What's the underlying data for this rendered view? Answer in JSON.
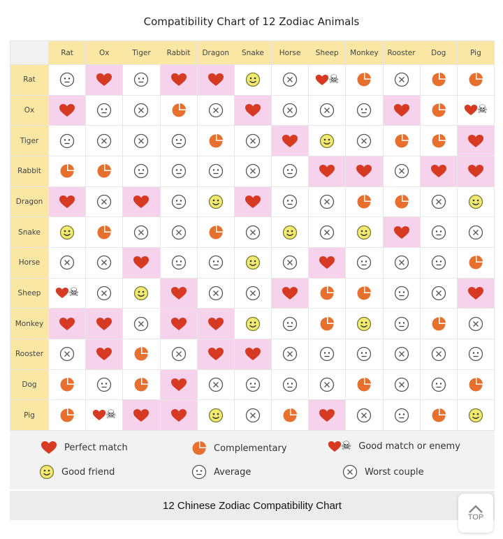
{
  "chart_data": {
    "type": "table",
    "title": "Compatibility Chart of 12 Zodiac Animals",
    "columns": [
      "Rat",
      "Ox",
      "Tiger",
      "Rabbit",
      "Dragon",
      "Snake",
      "Horse",
      "Sheep",
      "Monkey",
      "Rooster",
      "Dog",
      "Pig"
    ],
    "rows": [
      "Rat",
      "Ox",
      "Tiger",
      "Rabbit",
      "Dragon",
      "Snake",
      "Horse",
      "Sheep",
      "Monkey",
      "Rooster",
      "Dog",
      "Pig"
    ],
    "legend": {
      "H": "Perfect match",
      "P": "Complementary",
      "E": "Good match or enemy",
      "G": "Good friend",
      "A": "Average",
      "X": "Worst couple"
    },
    "matrix": [
      [
        "A",
        "H",
        "A",
        "H",
        "H",
        "G",
        "X",
        "E",
        "P",
        "X",
        "P",
        "P"
      ],
      [
        "H",
        "A",
        "X",
        "P",
        "X",
        "H",
        "X",
        "X",
        "A",
        "H",
        "P",
        "E"
      ],
      [
        "A",
        "X",
        "X",
        "A",
        "P",
        "X",
        "H",
        "G",
        "X",
        "P",
        "P",
        "H"
      ],
      [
        "P",
        "P",
        "A",
        "A",
        "A",
        "X",
        "A",
        "H",
        "H",
        "X",
        "H",
        "H"
      ],
      [
        "H",
        "X",
        "H",
        "A",
        "G",
        "H",
        "A",
        "X",
        "P",
        "P",
        "X",
        "G"
      ],
      [
        "G",
        "P",
        "X",
        "X",
        "P",
        "X",
        "G",
        "X",
        "G",
        "H",
        "A",
        "X"
      ],
      [
        "X",
        "X",
        "H",
        "A",
        "A",
        "G",
        "X",
        "H",
        "A",
        "X",
        "A",
        "P"
      ],
      [
        "E",
        "X",
        "G",
        "H",
        "X",
        "X",
        "H",
        "P",
        "P",
        "A",
        "X",
        "H"
      ],
      [
        "H",
        "H",
        "X",
        "H",
        "H",
        "G",
        "A",
        "P",
        "G",
        "A",
        "P",
        "X"
      ],
      [
        "X",
        "H",
        "P",
        "X",
        "H",
        "H",
        "X",
        "A",
        "A",
        "X",
        "X",
        "A"
      ],
      [
        "P",
        "A",
        "P",
        "H",
        "X",
        "A",
        "A",
        "X",
        "P",
        "X",
        "A",
        "P"
      ],
      [
        "P",
        "E",
        "H",
        "H",
        "G",
        "X",
        "P",
        "H",
        "X",
        "A",
        "P",
        "G"
      ]
    ],
    "colors": {
      "heart": "#d63a22",
      "pie": "#e8702f",
      "friend": "#f2ea70",
      "header": "#f9e7a3",
      "perfect_cell": "#f6d2ec"
    }
  },
  "caption": "12 Chinese Zodiac Compatibility Chart",
  "top_button": {
    "label": "TOP",
    "icon": "chevron-up-icon"
  }
}
